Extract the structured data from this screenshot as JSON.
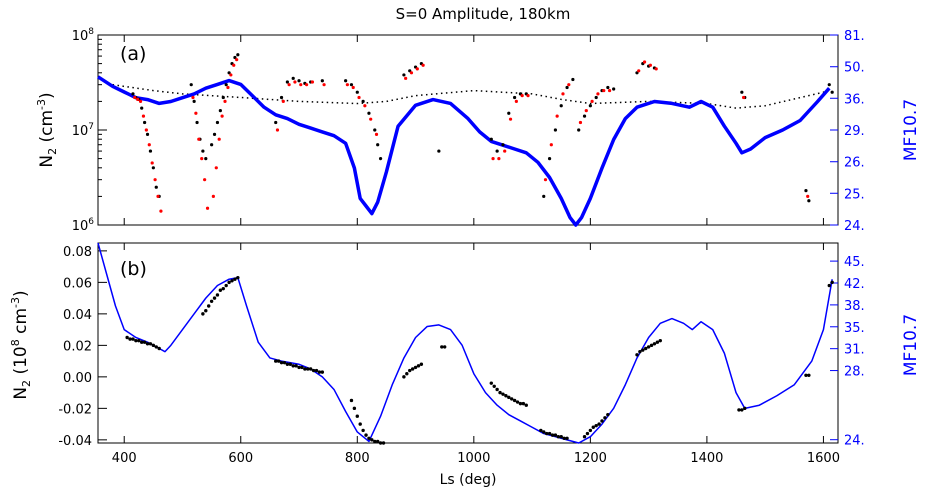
{
  "figure": {
    "title": "S=0 Amplitude, 180km",
    "xlabel": "Ls (deg)"
  },
  "colors": {
    "axis": "#000000",
    "solar": "#0000ff",
    "obs_black": "#000000",
    "obs_red": "#ff0000",
    "dotted": "#000000"
  },
  "chart_data": [
    {
      "type": "scatter",
      "panel_label": "(a)",
      "xlim": [
        355,
        1625
      ],
      "x_ticks": [
        "400",
        "600",
        "800",
        "1000",
        "1200",
        "1400",
        "1600"
      ],
      "y_scale": "log",
      "ylim": [
        1000000,
        100000000
      ],
      "y_ticks": [
        {
          "value": 1000000,
          "base": "10",
          "exp": "6"
        },
        {
          "value": 10000000,
          "base": "10",
          "exp": "7"
        },
        {
          "value": 100000000,
          "base": "10",
          "exp": "8"
        }
      ],
      "ylabel": {
        "main": "N",
        "sub": "2",
        "unit": " (cm",
        "sup": "-3",
        "close": ")"
      },
      "y2label": "MF10.7",
      "y2_ticks": [
        "81.",
        "50.",
        "36.",
        "29.",
        "26.",
        "25.",
        "24."
      ],
      "y2_tick_frac": [
        1.0,
        0.833,
        0.667,
        0.5,
        0.333,
        0.167,
        0.0
      ],
      "grid": false,
      "legend": "none",
      "series": [
        {
          "kind": "line",
          "role": "solar",
          "x": [
            355,
            380,
            400,
            420,
            440,
            460,
            480,
            500,
            520,
            540,
            560,
            580,
            600,
            620,
            640,
            660,
            680,
            700,
            720,
            740,
            760,
            780,
            795,
            805,
            815,
            825,
            835,
            850,
            870,
            900,
            930,
            960,
            990,
            1010,
            1030,
            1050,
            1070,
            1090,
            1110,
            1130,
            1150,
            1165,
            1175,
            1185,
            1200,
            1220,
            1240,
            1260,
            1280,
            1310,
            1340,
            1370,
            1390,
            1410,
            1430,
            1450,
            1460,
            1475,
            1500,
            1530,
            1560,
            1590,
            1610
          ],
          "y_frac": [
            0.78,
            0.73,
            0.7,
            0.67,
            0.66,
            0.64,
            0.65,
            0.67,
            0.69,
            0.72,
            0.74,
            0.76,
            0.74,
            0.68,
            0.62,
            0.58,
            0.56,
            0.53,
            0.51,
            0.49,
            0.47,
            0.43,
            0.3,
            0.14,
            0.1,
            0.06,
            0.12,
            0.28,
            0.52,
            0.63,
            0.66,
            0.64,
            0.56,
            0.49,
            0.44,
            0.42,
            0.4,
            0.38,
            0.33,
            0.25,
            0.14,
            0.04,
            0.0,
            0.04,
            0.14,
            0.3,
            0.45,
            0.56,
            0.62,
            0.65,
            0.64,
            0.62,
            0.65,
            0.62,
            0.52,
            0.43,
            0.38,
            0.4,
            0.46,
            0.5,
            0.55,
            0.65,
            0.72
          ]
        },
        {
          "kind": "dotted",
          "role": "fit",
          "x": [
            380,
            450,
            500,
            600,
            700,
            800,
            850,
            900,
            1000,
            1100,
            1150,
            1200,
            1300,
            1400,
            1450,
            1500,
            1600,
            1615
          ],
          "y": [
            30000000,
            26000000,
            24000000,
            22000000,
            20000000,
            19000000,
            20000000,
            23000000,
            26000000,
            24000000,
            21000000,
            19000000,
            20000000,
            19000000,
            17000000,
            18000000,
            25000000,
            27000000
          ]
        },
        {
          "kind": "points",
          "role": "obs_black",
          "x": [
            415,
            420,
            425,
            430,
            435,
            440,
            445,
            450,
            455,
            460,
            515,
            520,
            525,
            530,
            535,
            540,
            550,
            555,
            560,
            565,
            570,
            575,
            580,
            585,
            590,
            595,
            660,
            670,
            680,
            690,
            700,
            710,
            720,
            740,
            780,
            790,
            800,
            810,
            820,
            830,
            835,
            840,
            880,
            890,
            900,
            910,
            940,
            1030,
            1040,
            1050,
            1060,
            1070,
            1080,
            1090,
            1120,
            1130,
            1140,
            1150,
            1160,
            1170,
            1180,
            1190,
            1200,
            1210,
            1220,
            1230,
            1240,
            1280,
            1290,
            1300,
            1310,
            1460,
            1465,
            1570,
            1575,
            1610,
            1615
          ],
          "y": [
            24000000,
            22000000,
            21000000,
            17000000,
            12000000,
            9000000,
            6000000,
            4000000,
            2500000,
            2000000,
            30000000,
            20000000,
            12000000,
            8000000,
            6000000,
            5000000,
            7000000,
            9000000,
            12000000,
            16000000,
            22000000,
            30000000,
            40000000,
            50000000,
            58000000,
            62000000,
            12000000,
            22000000,
            32000000,
            35000000,
            33000000,
            31000000,
            32000000,
            33000000,
            33000000,
            30000000,
            25000000,
            20000000,
            15000000,
            10000000,
            7000000,
            5000000,
            38000000,
            42000000,
            46000000,
            50000000,
            6000000,
            8000000,
            6000000,
            7000000,
            15000000,
            22000000,
            24000000,
            24000000,
            2000000,
            5000000,
            10000000,
            18000000,
            28000000,
            34000000,
            10000000,
            14000000,
            18000000,
            22000000,
            26000000,
            28000000,
            27000000,
            40000000,
            50000000,
            47000000,
            45000000,
            25000000,
            22000000,
            2300000,
            1800000,
            30000000,
            25000000
          ]
        },
        {
          "kind": "points",
          "role": "obs_red",
          "x": [
            418,
            423,
            428,
            433,
            438,
            443,
            448,
            453,
            458,
            463,
            518,
            523,
            528,
            533,
            538,
            543,
            553,
            558,
            563,
            568,
            573,
            578,
            583,
            588,
            593,
            663,
            673,
            683,
            693,
            703,
            713,
            723,
            743,
            783,
            793,
            803,
            813,
            823,
            833,
            883,
            893,
            903,
            913,
            1033,
            1043,
            1053,
            1063,
            1073,
            1083,
            1093,
            1123,
            1133,
            1143,
            1153,
            1163,
            1183,
            1193,
            1203,
            1213,
            1223,
            1233,
            1283,
            1293,
            1303,
            1313,
            1463,
            1573
          ],
          "y": [
            22000000,
            21000000,
            20000000,
            14000000,
            10000000,
            7000000,
            4500000,
            3000000,
            2000000,
            1400000,
            22000000,
            15000000,
            8000000,
            5000000,
            3000000,
            1500000,
            2000000,
            4000000,
            8000000,
            14000000,
            20000000,
            28000000,
            38000000,
            48000000,
            55000000,
            10000000,
            20000000,
            30000000,
            32000000,
            30000000,
            30000000,
            32000000,
            30000000,
            30000000,
            28000000,
            22000000,
            18000000,
            13000000,
            9000000,
            35000000,
            40000000,
            44000000,
            48000000,
            5000000,
            5000000,
            6000000,
            13000000,
            20000000,
            23000000,
            23000000,
            3000000,
            7000000,
            14000000,
            24000000,
            30000000,
            12000000,
            16000000,
            20000000,
            24000000,
            26000000,
            26000000,
            42000000,
            52000000,
            48000000,
            44000000,
            22000000,
            2000000
          ]
        }
      ]
    },
    {
      "type": "line",
      "panel_label": "(b)",
      "xlim": [
        355,
        1625
      ],
      "x_ticks": [
        "400",
        "600",
        "800",
        "1000",
        "1200",
        "1400",
        "1600"
      ],
      "ylim": [
        -0.042,
        0.085
      ],
      "y_ticks": [
        "-0.04",
        "-0.02",
        "0.00",
        "0.02",
        "0.04",
        "0.06",
        "0.08"
      ],
      "y_tick_values": [
        -0.04,
        -0.02,
        0.0,
        0.02,
        0.04,
        0.06,
        0.08
      ],
      "ylabel": {
        "main": "N",
        "sub": "2",
        "unit": " (10",
        "sup": "8",
        "tail": " cm",
        "sup2": "-3",
        "close": ")"
      },
      "y2label": "MF10.7",
      "y2_ticks": [
        "45.",
        "42.",
        "38.",
        "35.",
        "31.",
        "28.",
        "24."
      ],
      "y2_tick_values": [
        0.0735,
        0.0596,
        0.0457,
        0.0318,
        0.0179,
        0.004,
        -0.0399
      ],
      "grid": false,
      "legend": "none",
      "series": [
        {
          "kind": "line",
          "role": "solar",
          "x": [
            355,
            370,
            385,
            400,
            420,
            440,
            460,
            470,
            480,
            500,
            520,
            540,
            560,
            580,
            595,
            610,
            630,
            650,
            670,
            700,
            720,
            740,
            760,
            780,
            800,
            820,
            840,
            860,
            880,
            900,
            920,
            940,
            960,
            980,
            1000,
            1020,
            1040,
            1060,
            1080,
            1100,
            1120,
            1140,
            1160,
            1180,
            1200,
            1220,
            1240,
            1260,
            1280,
            1300,
            1320,
            1340,
            1360,
            1375,
            1390,
            1410,
            1430,
            1450,
            1465,
            1490,
            1520,
            1550,
            1580,
            1600,
            1615
          ],
          "y": [
            0.085,
            0.065,
            0.045,
            0.03,
            0.025,
            0.022,
            0.018,
            0.016,
            0.02,
            0.03,
            0.04,
            0.05,
            0.058,
            0.062,
            0.063,
            0.045,
            0.022,
            0.012,
            0.01,
            0.008,
            0.005,
            0.0,
            -0.008,
            -0.022,
            -0.035,
            -0.041,
            -0.025,
            -0.005,
            0.012,
            0.025,
            0.032,
            0.033,
            0.03,
            0.02,
            0.002,
            -0.01,
            -0.018,
            -0.024,
            -0.028,
            -0.032,
            -0.036,
            -0.038,
            -0.04,
            -0.042,
            -0.038,
            -0.03,
            -0.02,
            -0.005,
            0.012,
            0.025,
            0.034,
            0.037,
            0.034,
            0.03,
            0.035,
            0.03,
            0.015,
            -0.01,
            -0.02,
            -0.018,
            -0.012,
            -0.005,
            0.01,
            0.03,
            0.062
          ]
        },
        {
          "kind": "points",
          "role": "obs_black",
          "x": [
            405,
            410,
            415,
            420,
            425,
            430,
            435,
            440,
            445,
            450,
            455,
            460,
            535,
            540,
            545,
            550,
            555,
            560,
            565,
            570,
            575,
            580,
            585,
            590,
            595,
            660,
            665,
            670,
            675,
            680,
            685,
            690,
            695,
            700,
            705,
            710,
            715,
            720,
            725,
            730,
            735,
            740,
            790,
            795,
            800,
            805,
            810,
            815,
            820,
            825,
            830,
            835,
            840,
            845,
            880,
            885,
            890,
            895,
            900,
            905,
            910,
            945,
            950,
            1030,
            1035,
            1040,
            1045,
            1050,
            1055,
            1060,
            1065,
            1070,
            1075,
            1080,
            1085,
            1090,
            1115,
            1120,
            1125,
            1130,
            1135,
            1140,
            1145,
            1150,
            1155,
            1160,
            1190,
            1195,
            1200,
            1205,
            1210,
            1215,
            1220,
            1225,
            1230,
            1280,
            1285,
            1290,
            1295,
            1300,
            1305,
            1310,
            1315,
            1320,
            1455,
            1460,
            1465,
            1570,
            1575,
            1610,
            1615
          ],
          "y": [
            0.025,
            0.024,
            0.024,
            0.023,
            0.023,
            0.022,
            0.022,
            0.021,
            0.021,
            0.02,
            0.019,
            0.018,
            0.04,
            0.042,
            0.045,
            0.048,
            0.05,
            0.052,
            0.055,
            0.056,
            0.058,
            0.06,
            0.061,
            0.062,
            0.063,
            0.01,
            0.01,
            0.009,
            0.009,
            0.008,
            0.008,
            0.007,
            0.007,
            0.006,
            0.006,
            0.005,
            0.005,
            0.005,
            0.004,
            0.004,
            0.003,
            0.003,
            -0.015,
            -0.02,
            -0.025,
            -0.03,
            -0.034,
            -0.037,
            -0.039,
            -0.04,
            -0.041,
            -0.041,
            -0.042,
            -0.042,
            0.0,
            0.002,
            0.004,
            0.005,
            0.006,
            0.007,
            0.008,
            0.019,
            0.019,
            -0.004,
            -0.006,
            -0.008,
            -0.01,
            -0.011,
            -0.012,
            -0.013,
            -0.014,
            -0.015,
            -0.016,
            -0.017,
            -0.017,
            -0.018,
            -0.034,
            -0.035,
            -0.036,
            -0.036,
            -0.037,
            -0.037,
            -0.038,
            -0.038,
            -0.039,
            -0.039,
            -0.038,
            -0.036,
            -0.034,
            -0.032,
            -0.031,
            -0.03,
            -0.028,
            -0.026,
            -0.024,
            0.014,
            0.016,
            0.017,
            0.018,
            0.019,
            0.02,
            0.021,
            0.022,
            0.023,
            -0.021,
            -0.021,
            -0.02,
            0.001,
            0.001,
            0.058,
            0.06
          ]
        }
      ]
    }
  ]
}
